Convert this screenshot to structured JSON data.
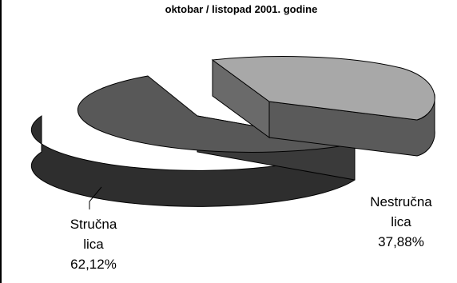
{
  "chart_data": {
    "type": "pie",
    "title": "oktobar / listopad 2001. godine",
    "slices": [
      {
        "name_line1": "Stručna",
        "name_line2": "lica",
        "value": 62.12,
        "value_label": "62,12%",
        "color": "#585858",
        "side_color": "#2e2e2e"
      },
      {
        "name_line1": "Nestručna",
        "name_line2": "lica",
        "value": 37.88,
        "value_label": "37,88%",
        "color": "#a8a8a8",
        "side_color": "#5a5a5a",
        "exploded": true
      }
    ],
    "style": "3d-exploded",
    "legend": "none"
  }
}
